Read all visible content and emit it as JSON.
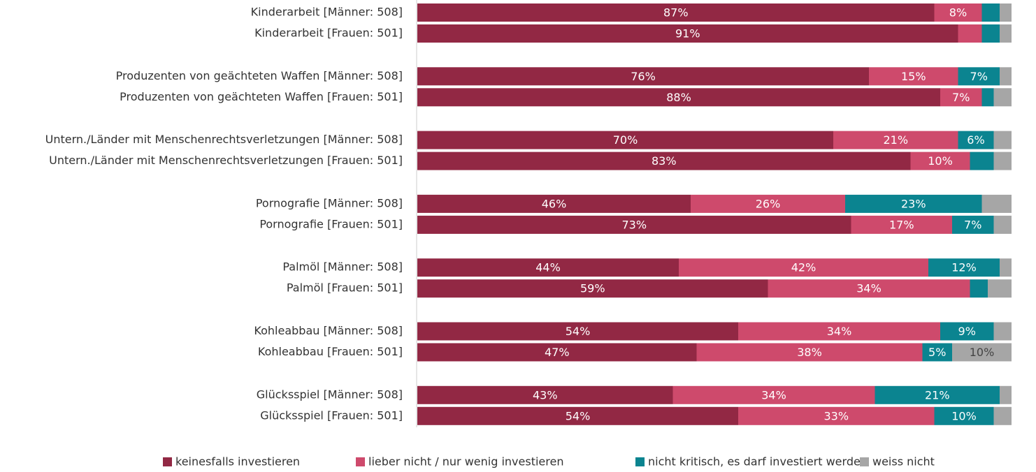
{
  "chart_data": {
    "type": "stacked_barh",
    "categories": [
      "Kinderarbeit [Männer: 508]",
      "Kinderarbeit [Frauen: 501]",
      "Produzenten von geächteten Waffen [Männer: 508]",
      "Produzenten von geächteten Waffen [Frauen: 501]",
      "Untern./Länder mit Menschenrechtsverletzungen [Männer: 508]",
      "Untern./Länder mit Menschenrechtsverletzungen [Frauen: 501]",
      "Pornografie [Männer: 508]",
      "Pornografie [Frauen: 501]",
      "Palmöl [Männer: 508]",
      "Palmöl [Frauen: 501]",
      "Kohleabbau [Männer: 508]",
      "Kohleabbau [Frauen: 501]",
      "Glücksspiel [Männer: 508]",
      "Glücksspiel [Frauen: 501]"
    ],
    "xlim": [
      0,
      100
    ],
    "series": [
      {
        "name": "keinesfalls investieren",
        "color": "#922844",
        "values": [
          87,
          91,
          76,
          88,
          70,
          83,
          46,
          73,
          44,
          59,
          54,
          47,
          43,
          54
        ],
        "value_labels": [
          "87%",
          "91%",
          "76%",
          "88%",
          "70%",
          "83%",
          "46%",
          "73%",
          "44%",
          "59%",
          "54%",
          "47%",
          "43%",
          "54%"
        ]
      },
      {
        "name": "lieber nicht / nur wenig investieren",
        "color": "#ce4a6c",
        "values": [
          8,
          4,
          15,
          7,
          21,
          10,
          26,
          17,
          42,
          34,
          34,
          38,
          34,
          33
        ],
        "value_labels": [
          "8%",
          null,
          "15%",
          "7%",
          "21%",
          "10%",
          "26%",
          "17%",
          "42%",
          "34%",
          "34%",
          "38%",
          "34%",
          "33%"
        ]
      },
      {
        "name": "nicht kritisch, es darf investiert werden",
        "color": "#0b8490",
        "values": [
          3,
          3,
          7,
          2,
          6,
          4,
          23,
          7,
          12,
          3,
          9,
          5,
          21,
          10
        ],
        "value_labels": [
          null,
          null,
          "7%",
          null,
          "6%",
          null,
          "23%",
          "7%",
          "12%",
          null,
          "9%",
          "5%",
          "21%",
          "10%"
        ]
      },
      {
        "name": "weiss nicht",
        "color": "#a6a6a6",
        "values": [
          2,
          2,
          2,
          3,
          3,
          3,
          5,
          3,
          2,
          4,
          3,
          10,
          2,
          3
        ],
        "value_labels": [
          null,
          null,
          null,
          null,
          null,
          null,
          null,
          null,
          null,
          null,
          null,
          "10%",
          null,
          null
        ]
      }
    ],
    "legend": "bottom"
  }
}
